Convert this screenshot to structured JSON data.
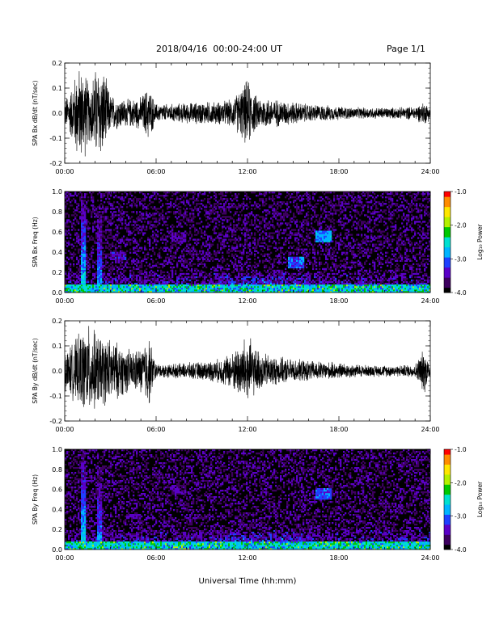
{
  "header": {
    "title": "2018/04/16  00:00-24:00 UT",
    "page": "Page 1/1"
  },
  "xlabel": "Universal Time (hh:mm)",
  "x_ticks": [
    "00:00",
    "06:00",
    "12:00",
    "18:00",
    "24:00"
  ],
  "colorbar": {
    "label": "Log₁₀ Power",
    "ticks": [
      "-1.0",
      "-2.0",
      "-3.0",
      "-4.0"
    ],
    "range": [
      -4.0,
      -1.0
    ],
    "colors": [
      "#000000",
      "#3d005f",
      "#5a00c8",
      "#1e40ff",
      "#00b4ff",
      "#00e0d0",
      "#00c800",
      "#b4f000",
      "#ffe600",
      "#ff8c00",
      "#ff0000"
    ]
  },
  "chart_data": [
    {
      "type": "line",
      "ylabel": "SPA Bx dB/dt (nT/sec)",
      "y_ticks": [
        "0.2",
        "0.1",
        "0.0",
        "-0.1",
        "-0.2"
      ],
      "ylim": [
        -0.2,
        0.2
      ],
      "xlim_hours": [
        0,
        24
      ],
      "color": "#000000",
      "envelope": {
        "hours": [
          0,
          0.5,
          0.8,
          1.0,
          1.3,
          1.6,
          2.0,
          2.5,
          3.0,
          3.5,
          4.0,
          5.0,
          5.5,
          6.0,
          7.0,
          8.0,
          9.0,
          10.0,
          11.0,
          11.7,
          12.0,
          12.5,
          13.0,
          14.0,
          15.0,
          16.0,
          17.0,
          18.0,
          19.0,
          20.0,
          21.0,
          22.0,
          23.0,
          23.6,
          24.0
        ],
        "amplitude": [
          0.06,
          0.12,
          0.2,
          0.2,
          0.2,
          0.12,
          0.2,
          0.2,
          0.08,
          0.07,
          0.06,
          0.07,
          0.12,
          0.04,
          0.04,
          0.045,
          0.05,
          0.05,
          0.06,
          0.12,
          0.15,
          0.08,
          0.07,
          0.06,
          0.05,
          0.04,
          0.035,
          0.03,
          0.025,
          0.025,
          0.025,
          0.025,
          0.03,
          0.05,
          0.03
        ]
      }
    },
    {
      "type": "heatmap",
      "ylabel": "SPA Bx Freq (Hz)",
      "y_ticks": [
        "1.0",
        "0.8",
        "0.6",
        "0.4",
        "0.2",
        "0.0"
      ],
      "ylim": [
        0.0,
        1.0
      ],
      "xlim_hours": [
        0,
        24
      ],
      "features": [
        {
          "hour": 1.2,
          "f_low": 0.0,
          "f_high": 1.0,
          "power": -2.3
        },
        {
          "hour": 2.3,
          "f_low": 0.0,
          "f_high": 1.0,
          "power": -2.6
        },
        {
          "hour": 3.5,
          "f_low": 0.32,
          "f_high": 0.4,
          "power": -3.2
        },
        {
          "hour": 7.5,
          "f_low": 0.5,
          "f_high": 0.6,
          "power": -3.3
        },
        {
          "hour": 15.2,
          "f_low": 0.25,
          "f_high": 0.35,
          "power": -2.8
        },
        {
          "hour": 17.0,
          "f_low": 0.5,
          "f_high": 0.62,
          "power": -2.6
        }
      ]
    },
    {
      "type": "line",
      "ylabel": "SPA By dB/dt (nT/sec)",
      "y_ticks": [
        "0.2",
        "0.1",
        "0.0",
        "-0.1",
        "-0.2"
      ],
      "ylim": [
        -0.2,
        0.2
      ],
      "xlim_hours": [
        0,
        24
      ],
      "color": "#000000",
      "envelope": {
        "hours": [
          0,
          0.5,
          1.0,
          1.5,
          2.0,
          2.5,
          3.0,
          3.5,
          4.0,
          4.5,
          5.0,
          5.5,
          6.0,
          7.0,
          8.0,
          9.0,
          10.0,
          11.0,
          11.5,
          12.0,
          12.5,
          13.0,
          14.0,
          15.0,
          16.0,
          17.0,
          18.0,
          19.0,
          20.0,
          21.0,
          22.0,
          23.0,
          23.6,
          24.0
        ],
        "amplitude": [
          0.08,
          0.12,
          0.16,
          0.2,
          0.17,
          0.15,
          0.14,
          0.12,
          0.1,
          0.09,
          0.1,
          0.16,
          0.03,
          0.03,
          0.035,
          0.04,
          0.05,
          0.08,
          0.12,
          0.16,
          0.1,
          0.08,
          0.06,
          0.05,
          0.045,
          0.04,
          0.035,
          0.03,
          0.025,
          0.025,
          0.025,
          0.03,
          0.1,
          0.03
        ]
      }
    },
    {
      "type": "heatmap",
      "ylabel": "SPA By Freq (Hz)",
      "y_ticks": [
        "1.0",
        "0.8",
        "0.6",
        "0.4",
        "0.2",
        "0.0"
      ],
      "ylim": [
        0.0,
        1.0
      ],
      "xlim_hours": [
        0,
        24
      ],
      "features": [
        {
          "hour": 1.2,
          "f_low": 0.0,
          "f_high": 1.0,
          "power": -2.3
        },
        {
          "hour": 2.3,
          "f_low": 0.0,
          "f_high": 1.0,
          "power": -2.6
        },
        {
          "hour": 4.5,
          "f_low": 0.3,
          "f_high": 0.36,
          "power": -3.3
        },
        {
          "hour": 7.5,
          "f_low": 0.55,
          "f_high": 0.65,
          "power": -3.3
        },
        {
          "hour": 17.0,
          "f_low": 0.5,
          "f_high": 0.62,
          "power": -2.8
        }
      ]
    }
  ]
}
